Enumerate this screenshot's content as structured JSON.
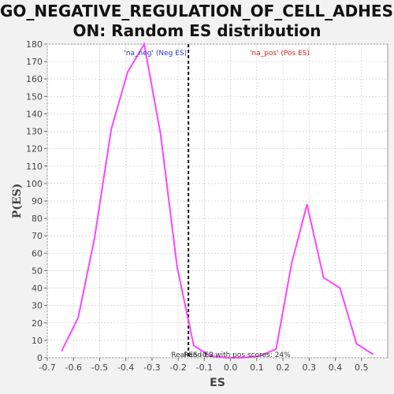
{
  "chart_data": {
    "type": "line",
    "title_line1": "GO_NEGATIVE_REGULATION_OF_CELL_ADHESI",
    "title_line2": "ON: Random ES distribution",
    "xlabel": "ES",
    "ylabel": "P(ES)",
    "xlim": [
      -0.7,
      0.6
    ],
    "ylim": [
      0,
      180
    ],
    "x_ticks": [
      "-0.7",
      "-0.6",
      "-0.5",
      "-0.4",
      "-0.3",
      "-0.2",
      "-0.1",
      "0.0",
      "0.1",
      "0.2",
      "0.3",
      "0.4",
      "0.5"
    ],
    "y_ticks": [
      "0",
      "10",
      "20",
      "30",
      "40",
      "50",
      "60",
      "70",
      "80",
      "90",
      "100",
      "110",
      "120",
      "130",
      "140",
      "150",
      "160",
      "170",
      "180"
    ],
    "grid": true,
    "series": [
      {
        "color": "#ff44ff",
        "x": [
          -0.645,
          -0.582,
          -0.519,
          -0.456,
          -0.393,
          -0.33,
          -0.267,
          -0.204,
          -0.141,
          -0.078,
          -0.015,
          0.048,
          0.111,
          0.174,
          0.233,
          0.292,
          0.355,
          0.418,
          0.481,
          0.544
        ],
        "y": [
          4,
          23,
          69,
          131,
          164,
          180,
          128,
          52,
          7,
          1,
          0,
          0,
          1,
          5,
          54,
          88,
          46,
          40,
          8,
          2
        ]
      }
    ],
    "vline_x": -0.161,
    "annotations": {
      "neg": "'na_neg' (Neg ES)",
      "pos": "'na_pos' (Pos ES)",
      "bottom": "Real ES -0.2",
      "bottom2": "Rand ES with pos scores: 24%"
    },
    "colors": {
      "neg": "#3333cc",
      "pos": "#dd2222",
      "line": "#ff44ff"
    }
  }
}
